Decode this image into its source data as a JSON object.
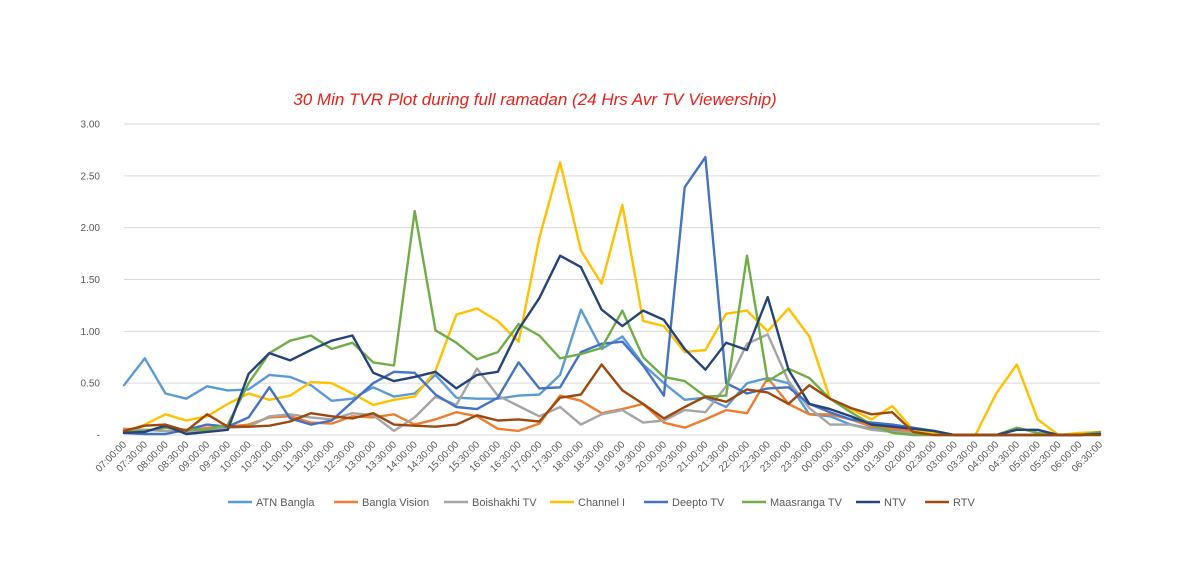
{
  "chart_data": {
    "type": "line",
    "title": "30 Min TVR Plot during full ramadan (24 Hrs Avr TV Viewership)",
    "xlabel": "",
    "ylabel": "",
    "ylim": [
      0,
      3
    ],
    "yticks": [
      "-",
      "0.50",
      "1.00",
      "1.50",
      "2.00",
      "2.50",
      "3.00"
    ],
    "grid": true,
    "legend_position": "bottom",
    "x": [
      "07:00:00",
      "07:30:00",
      "08:00:00",
      "08:30:00",
      "09:00:00",
      "09:30:00",
      "10:00:00",
      "10:30:00",
      "11:00:00",
      "11:30:00",
      "12:00:00",
      "12:30:00",
      "13:00:00",
      "13:30:00",
      "14:00:00",
      "14:30:00",
      "15:00:00",
      "15:30:00",
      "16:00:00",
      "16:30:00",
      "17:00:00",
      "17:30:00",
      "18:00:00",
      "18:30:00",
      "19:00:00",
      "19:30:00",
      "20:00:00",
      "20:30:00",
      "21:00:00",
      "21:30:00",
      "22:00:00",
      "22:30:00",
      "23:00:00",
      "23:30:00",
      "00:00:00",
      "00:30:00",
      "01:00:00",
      "01:30:00",
      "02:00:00",
      "02:30:00",
      "03:00:00",
      "03:30:00",
      "04:00:00",
      "04:30:00",
      "05:00:00",
      "05:30:00",
      "06:00:00",
      "06:30:00"
    ],
    "series": [
      {
        "name": "ATN Bangla",
        "color": "#5b9bd5",
        "values": [
          0.48,
          0.74,
          0.4,
          0.35,
          0.47,
          0.43,
          0.44,
          0.58,
          0.56,
          0.48,
          0.33,
          0.35,
          0.46,
          0.37,
          0.4,
          0.58,
          0.36,
          0.35,
          0.35,
          0.38,
          0.39,
          0.58,
          1.21,
          0.83,
          0.95,
          0.68,
          0.5,
          0.34,
          0.36,
          0.27,
          0.5,
          0.55,
          0.5,
          0.2,
          0.18,
          0.1,
          0.06,
          0.05,
          0.03,
          0.02,
          0.0,
          0.0,
          0.0,
          0.0,
          0.0,
          0.0,
          0.01,
          0.01
        ]
      },
      {
        "name": "Bangla Vision",
        "color": "#ed7d31",
        "values": [
          0.06,
          0.05,
          0.04,
          0.04,
          0.07,
          0.08,
          0.1,
          0.17,
          0.18,
          0.12,
          0.11,
          0.18,
          0.17,
          0.2,
          0.1,
          0.15,
          0.22,
          0.18,
          0.06,
          0.04,
          0.11,
          0.38,
          0.33,
          0.21,
          0.25,
          0.3,
          0.12,
          0.07,
          0.15,
          0.24,
          0.21,
          0.55,
          0.3,
          0.2,
          0.2,
          0.15,
          0.08,
          0.06,
          0.04,
          0.02,
          0.0,
          0.0,
          0.0,
          0.0,
          0.0,
          0.0,
          0.01,
          0.01
        ]
      },
      {
        "name": "Boishakhi TV",
        "color": "#a5a5a5",
        "values": [
          0.05,
          0.05,
          0.04,
          0.03,
          0.05,
          0.07,
          0.08,
          0.18,
          0.2,
          0.17,
          0.15,
          0.21,
          0.19,
          0.04,
          0.17,
          0.37,
          0.29,
          0.64,
          0.38,
          0.28,
          0.18,
          0.27,
          0.1,
          0.2,
          0.24,
          0.12,
          0.14,
          0.24,
          0.22,
          0.47,
          0.88,
          0.97,
          0.52,
          0.26,
          0.1,
          0.1,
          0.05,
          0.03,
          0.02,
          0.01,
          0.0,
          0.0,
          0.0,
          0.0,
          0.0,
          0.0,
          0.01,
          0.01
        ]
      },
      {
        "name": "Channel I",
        "color": "#ffc000",
        "values": [
          0.03,
          0.1,
          0.2,
          0.14,
          0.18,
          0.3,
          0.4,
          0.34,
          0.38,
          0.51,
          0.5,
          0.4,
          0.29,
          0.34,
          0.37,
          0.62,
          1.16,
          1.22,
          1.1,
          0.9,
          1.9,
          2.63,
          1.78,
          1.46,
          2.22,
          1.1,
          1.05,
          0.8,
          0.82,
          1.17,
          1.2,
          1.0,
          1.22,
          0.95,
          0.35,
          0.25,
          0.15,
          0.28,
          0.05,
          0.02,
          0.0,
          0.0,
          0.4,
          0.68,
          0.15,
          0.0,
          0.02,
          0.03
        ]
      },
      {
        "name": "Deepto TV",
        "color": "#4472c4",
        "values": [
          0.02,
          0.01,
          0.01,
          0.05,
          0.1,
          0.08,
          0.17,
          0.46,
          0.16,
          0.1,
          0.14,
          0.32,
          0.5,
          0.61,
          0.6,
          0.39,
          0.27,
          0.25,
          0.36,
          0.7,
          0.45,
          0.46,
          0.8,
          0.88,
          0.9,
          0.67,
          0.38,
          2.39,
          2.68,
          0.5,
          0.4,
          0.45,
          0.46,
          0.3,
          0.22,
          0.15,
          0.12,
          0.1,
          0.07,
          0.04,
          0.0,
          0.0,
          0.0,
          0.0,
          0.0,
          0.0,
          0.0,
          0.01
        ]
      },
      {
        "name": "Maasranga TV",
        "color": "#70ad47",
        "values": [
          0.03,
          0.04,
          0.07,
          0.05,
          0.05,
          0.1,
          0.5,
          0.79,
          0.91,
          0.96,
          0.83,
          0.89,
          0.7,
          0.67,
          2.16,
          1.01,
          0.89,
          0.73,
          0.8,
          1.07,
          0.96,
          0.74,
          0.78,
          0.84,
          1.2,
          0.75,
          0.56,
          0.52,
          0.37,
          0.38,
          1.73,
          0.52,
          0.64,
          0.55,
          0.35,
          0.22,
          0.1,
          0.02,
          0.0,
          0.0,
          0.0,
          0.0,
          0.0,
          0.07,
          0.02,
          0.0,
          0.0,
          0.03
        ]
      },
      {
        "name": "NTV",
        "color": "#264478",
        "values": [
          0.02,
          0.03,
          0.09,
          0.01,
          0.03,
          0.05,
          0.59,
          0.79,
          0.72,
          0.82,
          0.91,
          0.96,
          0.6,
          0.52,
          0.56,
          0.61,
          0.45,
          0.58,
          0.61,
          1.02,
          1.32,
          1.73,
          1.62,
          1.21,
          1.05,
          1.2,
          1.11,
          0.83,
          0.63,
          0.89,
          0.82,
          1.33,
          0.63,
          0.3,
          0.25,
          0.18,
          0.1,
          0.08,
          0.06,
          0.04,
          0.0,
          0.0,
          0.0,
          0.05,
          0.05,
          0.0,
          0.0,
          0.01
        ]
      },
      {
        "name": "RTV",
        "color": "#9e480e",
        "values": [
          0.04,
          0.09,
          0.1,
          0.04,
          0.2,
          0.08,
          0.08,
          0.09,
          0.13,
          0.21,
          0.18,
          0.16,
          0.21,
          0.1,
          0.09,
          0.08,
          0.1,
          0.19,
          0.14,
          0.15,
          0.13,
          0.36,
          0.39,
          0.68,
          0.43,
          0.3,
          0.16,
          0.27,
          0.37,
          0.32,
          0.44,
          0.41,
          0.3,
          0.48,
          0.35,
          0.26,
          0.2,
          0.22,
          0.03,
          0.0,
          0.0,
          0.0,
          0.0,
          0.0,
          0.0,
          0.0,
          0.0,
          0.0
        ]
      }
    ]
  }
}
